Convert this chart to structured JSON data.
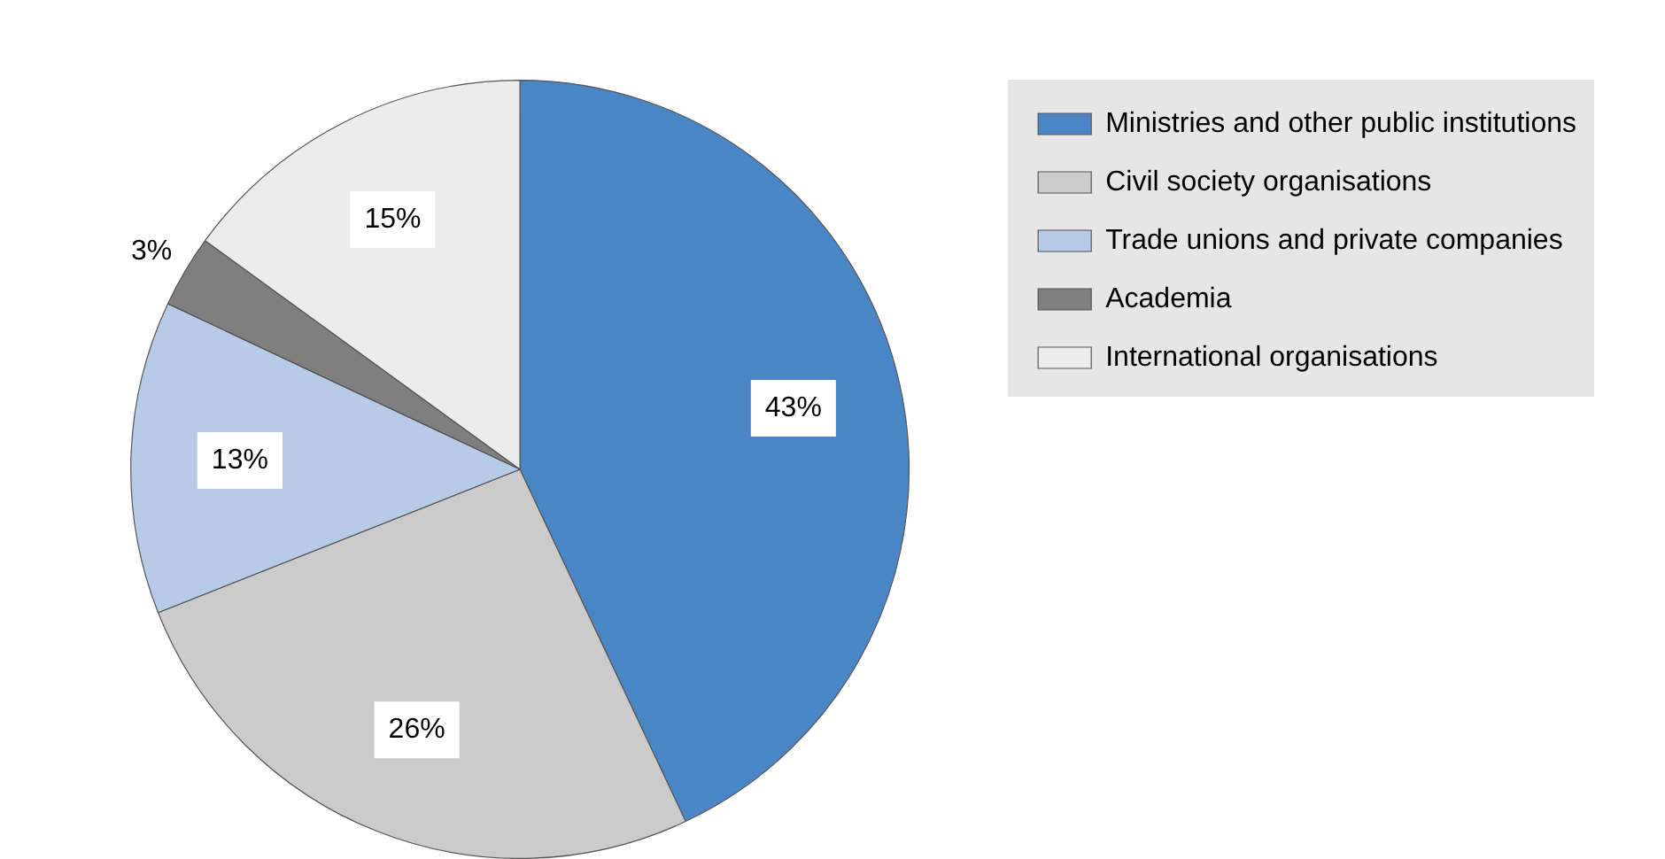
{
  "chart_data": {
    "type": "pie",
    "categories": [
      "Ministries and other public institutions",
      "Civil society organisations",
      "Trade unions and private companies",
      "Academia",
      "International organisations"
    ],
    "values": [
      43,
      26,
      13,
      3,
      15
    ],
    "colors": [
      "#4a86c5",
      "#cbcbcb",
      "#b7cbe8",
      "#7f7f7f",
      "#ececec"
    ],
    "value_labels": [
      "43%",
      "26%",
      "13%",
      "3%",
      "15%"
    ],
    "legend": "top right"
  }
}
